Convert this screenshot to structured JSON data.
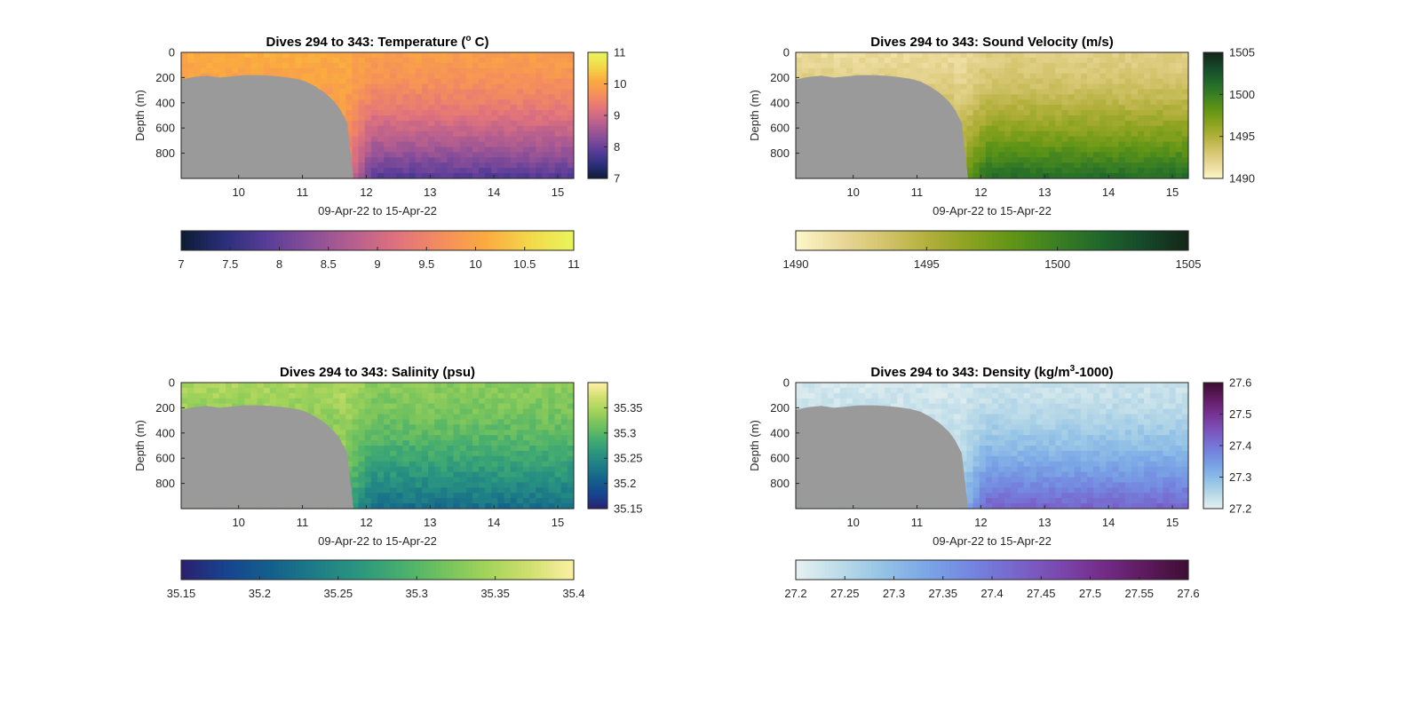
{
  "colors": {
    "background": "#ffffff",
    "seafloor_mask": "#9a9a9a",
    "axis": "#262626",
    "thermal": [
      "#0b1b33",
      "#2b2f7a",
      "#5a3d99",
      "#8b4f98",
      "#b9608e",
      "#e1737c",
      "#f58e5c",
      "#fbab3f",
      "#f3d84a",
      "#e8f55c"
    ],
    "speed": [
      "#fdf8c9",
      "#ead99a",
      "#d4c46d",
      "#b3b03c",
      "#8aa21f",
      "#5f9416",
      "#3a7f23",
      "#1f662b",
      "#16472a",
      "#142618"
    ],
    "haline": [
      "#2a1f6e",
      "#17438f",
      "#135e8c",
      "#1d7a87",
      "#2a9480",
      "#45ad6f",
      "#72c25e",
      "#a3d35a",
      "#d1e070",
      "#fdf0a4"
    ],
    "dense": [
      "#e6f1f1",
      "#bcdbe8",
      "#94c3e6",
      "#7aa6e6",
      "#7486df",
      "#7867cc",
      "#7b49b0",
      "#742d8a",
      "#5e1a5e",
      "#3d0e32"
    ]
  },
  "chart_data": [
    {
      "type": "heatmap",
      "id": "temperature",
      "title_main": "Dives 294 to 343: Temperature (",
      "title_sup": "o",
      "title_tail": " C)",
      "xlabel": "09-Apr-22 to 15-Apr-22",
      "ylabel": "Depth (m)",
      "xlim": [
        9.1,
        15.25
      ],
      "ylim": [
        0,
        1000
      ],
      "xticks": [
        10,
        11,
        12,
        13,
        14,
        15
      ],
      "xtick_labels": [
        "10",
        "11",
        "12",
        "13",
        "14",
        "15"
      ],
      "yticks": [
        0,
        200,
        400,
        600,
        800
      ],
      "ytick_labels": [
        "0",
        "200",
        "400",
        "600",
        "800"
      ],
      "colormap": "thermal",
      "clim": [
        7,
        11
      ],
      "cbar_side_ticks": [
        7,
        8,
        9,
        10,
        11
      ],
      "cbar_side_labels": [
        "7",
        "8",
        "9",
        "10",
        "11"
      ],
      "cbar_bottom_ticks": [
        7,
        7.5,
        8,
        8.5,
        9,
        9.5,
        10,
        10.5,
        11
      ],
      "cbar_bottom_labels": [
        "7",
        "7.5",
        "8",
        "8.5",
        "9",
        "9.5",
        "10",
        "10.5",
        "11"
      ],
      "field": {
        "surface": 10.1,
        "surface_late": 9.9,
        "bottom": 9.6,
        "bottom_late": 7.8,
        "noise": 0.12
      }
    },
    {
      "type": "heatmap",
      "id": "sound_velocity",
      "title_main": "Dives 294 to 343: Sound Velocity (m/s)",
      "title_sup": "",
      "title_tail": "",
      "xlabel": "09-Apr-22 to 15-Apr-22",
      "ylabel": "Depth (m)",
      "xlim": [
        9.1,
        15.25
      ],
      "ylim": [
        0,
        1000
      ],
      "xticks": [
        10,
        11,
        12,
        13,
        14,
        15
      ],
      "xtick_labels": [
        "10",
        "11",
        "12",
        "13",
        "14",
        "15"
      ],
      "yticks": [
        0,
        200,
        400,
        600,
        800
      ],
      "ytick_labels": [
        "0",
        "200",
        "400",
        "600",
        "800"
      ],
      "colormap": "speed",
      "clim": [
        1490,
        1505
      ],
      "cbar_side_ticks": [
        1490,
        1495,
        1500,
        1505
      ],
      "cbar_side_labels": [
        "1490",
        "1495",
        "1500",
        "1505"
      ],
      "cbar_bottom_ticks": [
        1490,
        1495,
        1500,
        1505
      ],
      "cbar_bottom_labels": [
        "1490",
        "1495",
        "1500",
        "1505"
      ],
      "field": {
        "surface": 1491.5,
        "surface_late": 1492.5,
        "bottom": 1496,
        "bottom_late": 1501.5,
        "noise": 0.5
      }
    },
    {
      "type": "heatmap",
      "id": "salinity",
      "title_main": "Dives 294 to 343: Salinity (psu)",
      "title_sup": "",
      "title_tail": "",
      "xlabel": "09-Apr-22 to 15-Apr-22",
      "ylabel": "Depth (m)",
      "xlim": [
        9.1,
        15.25
      ],
      "ylim": [
        0,
        1000
      ],
      "xticks": [
        10,
        11,
        12,
        13,
        14,
        15
      ],
      "xtick_labels": [
        "10",
        "11",
        "12",
        "13",
        "14",
        "15"
      ],
      "yticks": [
        0,
        200,
        400,
        600,
        800
      ],
      "ytick_labels": [
        "0",
        "200",
        "400",
        "600",
        "800"
      ],
      "colormap": "haline",
      "clim": [
        35.15,
        35.4
      ],
      "cbar_side_ticks": [
        35.15,
        35.2,
        35.25,
        35.3,
        35.35
      ],
      "cbar_side_labels": [
        "35.15",
        "35.2",
        "35.25",
        "35.3",
        "35.35"
      ],
      "cbar_bottom_ticks": [
        35.15,
        35.2,
        35.25,
        35.3,
        35.35,
        35.4
      ],
      "cbar_bottom_labels": [
        "35.15",
        "35.2",
        "35.25",
        "35.3",
        "35.35",
        "35.4"
      ],
      "field": {
        "surface": 35.35,
        "surface_late": 35.33,
        "bottom": 35.3,
        "bottom_late": 35.22,
        "noise": 0.012
      }
    },
    {
      "type": "heatmap",
      "id": "density",
      "title_main": "Dives 294 to 343: Density (kg/m",
      "title_sup": "3",
      "title_tail": "-1000)",
      "xlabel": "09-Apr-22 to 15-Apr-22",
      "ylabel": "Depth (m)",
      "xlim": [
        9.1,
        15.25
      ],
      "ylim": [
        0,
        1000
      ],
      "xticks": [
        10,
        11,
        12,
        13,
        14,
        15
      ],
      "xtick_labels": [
        "10",
        "11",
        "12",
        "13",
        "14",
        "15"
      ],
      "yticks": [
        0,
        200,
        400,
        600,
        800
      ],
      "ytick_labels": [
        "0",
        "200",
        "400",
        "600",
        "800"
      ],
      "colormap": "dense",
      "clim": [
        27.2,
        27.6
      ],
      "cbar_side_ticks": [
        27.2,
        27.3,
        27.4,
        27.5,
        27.6
      ],
      "cbar_side_labels": [
        "27.2",
        "27.3",
        "27.4",
        "27.5",
        "27.6"
      ],
      "cbar_bottom_ticks": [
        27.2,
        27.25,
        27.3,
        27.35,
        27.4,
        27.45,
        27.5,
        27.55,
        27.6
      ],
      "cbar_bottom_labels": [
        "27.2",
        "27.25",
        "27.3",
        "27.35",
        "27.4",
        "27.45",
        "27.5",
        "27.55",
        "27.6"
      ],
      "field": {
        "surface": 27.22,
        "surface_late": 27.23,
        "bottom": 27.27,
        "bottom_late": 27.43,
        "noise": 0.015
      }
    }
  ],
  "seafloor": {
    "x": [
      9.1,
      9.3,
      9.5,
      9.7,
      9.9,
      10.1,
      10.3,
      10.5,
      10.7,
      10.9,
      11.05,
      11.2,
      11.35,
      11.5,
      11.6,
      11.7,
      11.8
    ],
    "depth": [
      215,
      195,
      185,
      200,
      190,
      180,
      180,
      185,
      195,
      210,
      230,
      270,
      320,
      390,
      460,
      560,
      1000
    ],
    "end_x": 11.8
  }
}
